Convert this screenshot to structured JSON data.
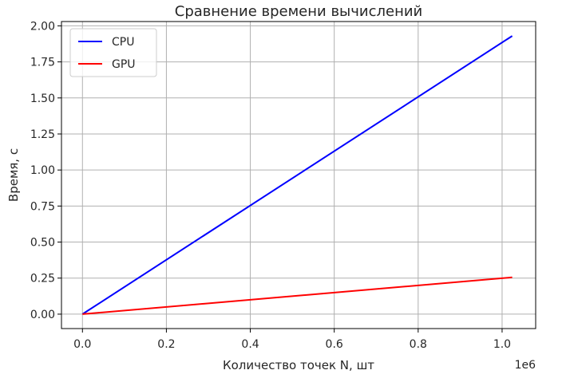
{
  "chart_data": {
    "type": "line",
    "title": "Сравнение времени вычислений",
    "xlabel": "Количество точек N, шт",
    "ylabel": "Время, с",
    "x_offset_label": "1e6",
    "xlim": [
      -0.05,
      1.08
    ],
    "ylim": [
      -0.1,
      2.03
    ],
    "xticks": [
      0.0,
      0.2,
      0.4,
      0.6,
      0.8,
      1.0
    ],
    "xtick_labels": [
      "0.0",
      "0.2",
      "0.4",
      "0.6",
      "0.8",
      "1.0"
    ],
    "yticks": [
      0.0,
      0.25,
      0.5,
      0.75,
      1.0,
      1.25,
      1.5,
      1.75,
      2.0
    ],
    "ytick_labels": [
      "0.00",
      "0.25",
      "0.50",
      "0.75",
      "1.00",
      "1.25",
      "1.50",
      "1.75",
      "2.00"
    ],
    "grid": true,
    "legend_position": "top-left",
    "series": [
      {
        "name": "CPU",
        "color": "#0000ff",
        "x": [
          0.0,
          1.024
        ],
        "y": [
          0.0,
          1.93
        ]
      },
      {
        "name": "GPU",
        "color": "#ff0000",
        "x": [
          0.0,
          1.024
        ],
        "y": [
          0.0,
          0.255
        ]
      }
    ]
  }
}
